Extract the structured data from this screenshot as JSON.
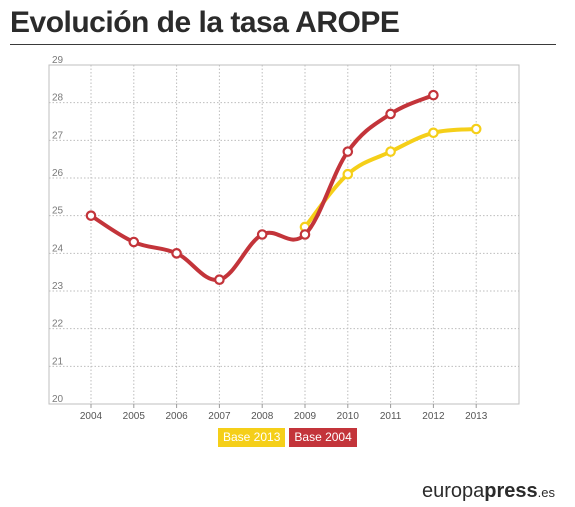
{
  "title": "Evolución de la tasa AROPE",
  "brand": {
    "part1": "europa",
    "part2": "press",
    "tld": ".es"
  },
  "chart_data": {
    "type": "line",
    "x": [
      "2004",
      "2005",
      "2006",
      "2007",
      "2008",
      "2009",
      "2010",
      "2011",
      "2012",
      "2013"
    ],
    "ylim": [
      20,
      29
    ],
    "yticks": [
      20,
      21,
      22,
      23,
      24,
      25,
      26,
      27,
      28,
      29
    ],
    "grid": true,
    "legend_position": "bottom-center",
    "series": [
      {
        "name": "Base 2013",
        "color": "#f5cf19",
        "values": [
          null,
          null,
          null,
          null,
          null,
          24.7,
          26.1,
          26.7,
          27.2,
          27.3
        ]
      },
      {
        "name": "Base 2004",
        "color": "#c3343a",
        "values": [
          25.0,
          24.3,
          24.0,
          23.3,
          24.5,
          24.5,
          26.7,
          27.7,
          28.2,
          null
        ]
      }
    ]
  }
}
